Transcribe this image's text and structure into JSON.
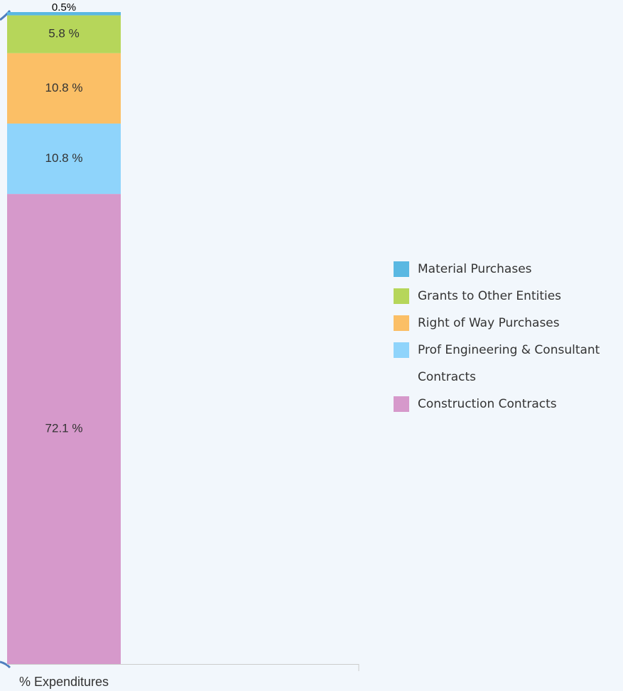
{
  "chart_data": {
    "type": "stacked_bar",
    "categories": [
      "% Expenditures"
    ],
    "ylim": [
      0,
      100
    ],
    "legend": "right",
    "series": [
      {
        "name": "Construction Contracts",
        "color": "#d699cb",
        "values": [
          72.1
        ],
        "value_labels": [
          "72.1 %"
        ]
      },
      {
        "name": "Prof Engineering & Consultant Contracts",
        "color": "#8fd4fb",
        "values": [
          10.8
        ],
        "value_labels": [
          "10.8 %"
        ]
      },
      {
        "name": "Right of Way Purchases",
        "color": "#fbbf66",
        "values": [
          10.8
        ],
        "value_labels": [
          "10.8 %"
        ]
      },
      {
        "name": "Grants to Other Entities",
        "color": "#b6d65a",
        "values": [
          5.8
        ],
        "value_labels": [
          "5.8 %"
        ]
      },
      {
        "name": "Material Purchases",
        "color": "#5ab8e2",
        "values": [
          0.5
        ],
        "value_labels": [
          "0.5%"
        ]
      }
    ]
  }
}
